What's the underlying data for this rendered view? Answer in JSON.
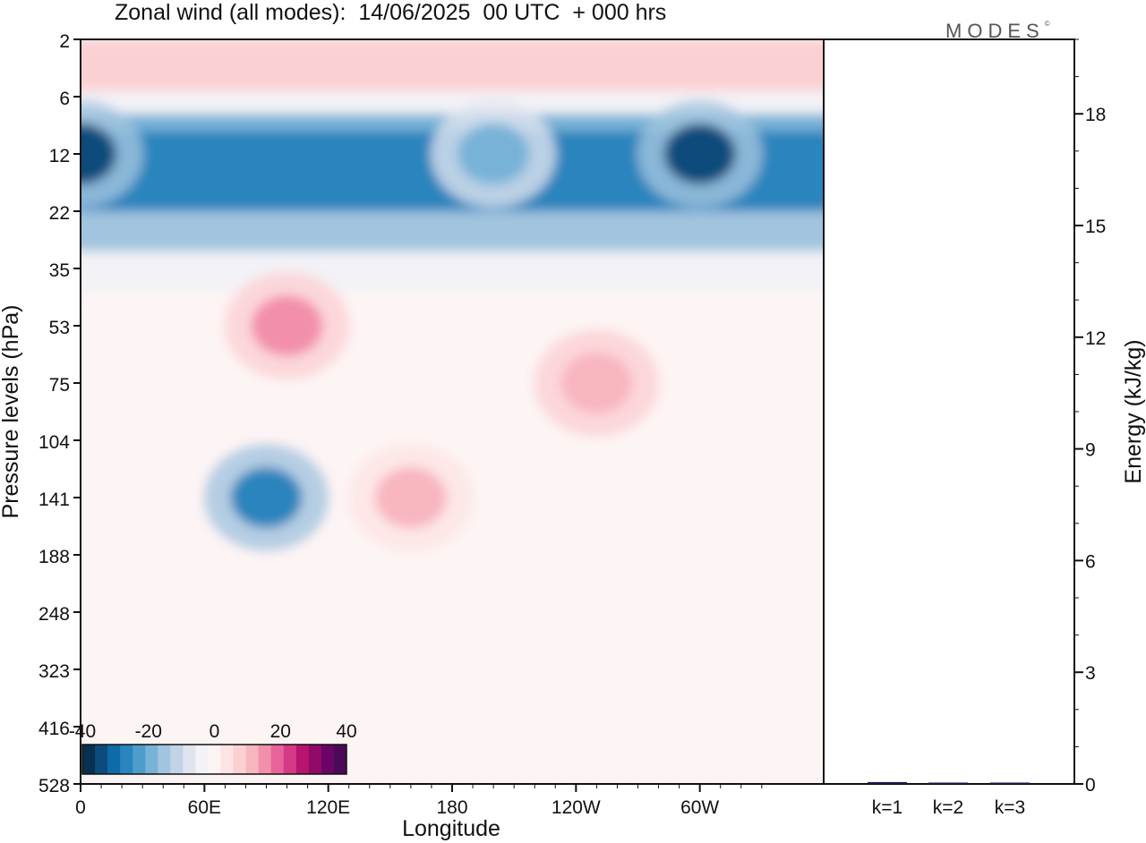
{
  "title": "Zonal wind (all modes):  14/06/2025  00 UTC  + 000 hrs",
  "logo": "MODES",
  "logo_mark": "©",
  "colors": {
    "scale": [
      "#08304f",
      "#0b4c7c",
      "#0d6ba7",
      "#2a84bd",
      "#4d9ccc",
      "#78b2d7",
      "#a2c4df",
      "#c3d3e7",
      "#dfe4ef",
      "#f3f2f6",
      "#fdf4f4",
      "#fde4e4",
      "#fbd0d3",
      "#f8b6bf",
      "#f28fab",
      "#e8639a",
      "#d53a86",
      "#b81570",
      "#920a67",
      "#6a0466",
      "#4a0a55"
    ]
  },
  "chart_data": [
    {
      "type": "heatmap",
      "title": "Zonal wind (all modes):  14/06/2025  00 UTC  + 000 hrs",
      "xlabel": "Longitude",
      "ylabel": "Pressure levels (hPa)",
      "x_ticks": [
        "0",
        "60E",
        "120E",
        "180",
        "120W",
        "60W"
      ],
      "y_ticks": [
        "2",
        "6",
        "12",
        "22",
        "35",
        "53",
        "75",
        "104",
        "141",
        "188",
        "248",
        "323",
        "416",
        "528"
      ],
      "colorbar": {
        "ticks": [
          "-40",
          "-20",
          "0",
          "20",
          "40"
        ],
        "range": [
          -40,
          40
        ]
      },
      "features": [
        {
          "lon": 90,
          "level": "141",
          "value": -30
        },
        {
          "lon": 100,
          "level": "53",
          "value": 15
        },
        {
          "lon": 160,
          "level": "141",
          "value": 10
        },
        {
          "lon": 250,
          "level": "75",
          "value": 12
        },
        {
          "lon": 0,
          "level": "12",
          "value": -35
        },
        {
          "lon": 200,
          "level": "12",
          "value": -20
        },
        {
          "lon": 300,
          "level": "12",
          "value": -35
        }
      ]
    },
    {
      "type": "bar",
      "ylabel": "Energy (kJ/kg)",
      "categories": [
        "k=1",
        "k=2",
        "k=3"
      ],
      "values": [
        0.05,
        0.03,
        0.02
      ],
      "ylim": [
        0,
        20
      ],
      "y_ticks": [
        "0",
        "3",
        "6",
        "9",
        "12",
        "15",
        "18"
      ]
    }
  ]
}
